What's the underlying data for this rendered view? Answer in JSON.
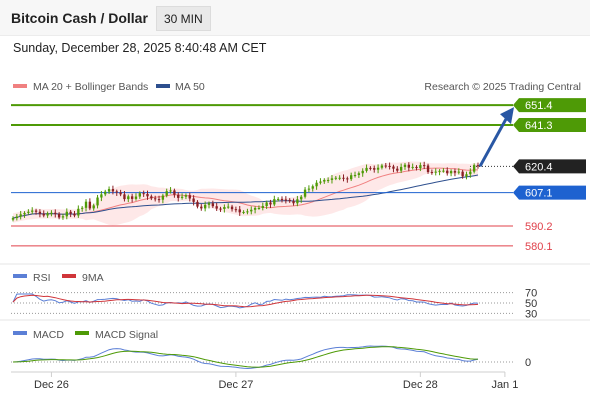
{
  "header": {
    "title": "Bitcoin Cash / Dollar",
    "timeframe": "30 MIN"
  },
  "datetime": "Sunday, December 28, 2025 8:40:48 AM CET",
  "legend": {
    "ma20": "MA 20 + Bollinger Bands",
    "ma50": "MA 50",
    "credit": "Research © 2025 Trading Central",
    "rsi": "RSI",
    "rsi_ma": "9MA",
    "macd": "MACD",
    "macd_signal": "MACD Signal"
  },
  "colors": {
    "green": "#4e9a06",
    "blue": "#1e62d0",
    "red": "#e0404a",
    "arrow": "#2957a4",
    "ma20": "#f08080",
    "ma50": "#2d4f8e",
    "band": "#fde0e0",
    "rsi": "#5b7fd6",
    "rsi_ma": "#d0353a",
    "macd": "#5b7fd6",
    "macd_signal": "#4e9a06"
  },
  "chart_data": {
    "type": "candlestick",
    "y_range": [
      575,
      656
    ],
    "current_price": 620.4,
    "levels": [
      {
        "value": 651.4,
        "label": "651.4",
        "kind": "resistance"
      },
      {
        "value": 641.3,
        "label": "641.3",
        "kind": "resistance"
      },
      {
        "value": 607.1,
        "label": "607.1",
        "kind": "pivot"
      },
      {
        "value": 590.2,
        "label": "590.2",
        "kind": "support"
      },
      {
        "value": 580.1,
        "label": "580.1",
        "kind": "support"
      }
    ],
    "x_ticks": [
      "Dec 26",
      "Dec 27",
      "Dec 28",
      "Jan 1"
    ],
    "x_tick_index": [
      10,
      58,
      106,
      128
    ],
    "closes": [
      594.2,
      595.0,
      596.1,
      596.8,
      597.4,
      598.0,
      597.4,
      596.4,
      595.5,
      596.6,
      596.9,
      596.3,
      594.5,
      595.1,
      597.4,
      596.5,
      595.5,
      598.9,
      599.4,
      602.5,
      599.1,
      600.6,
      604.6,
      606.2,
      607.6,
      608.9,
      607.7,
      607.2,
      606.2,
      603.8,
      605.2,
      603.9,
      605.1,
      606.8,
      606.4,
      605.2,
      604.2,
      603.8,
      603.5,
      605.6,
      607.8,
      608.2,
      606.0,
      604.4,
      605.0,
      605.8,
      604.1,
      602.4,
      600.0,
      599.1,
      600.9,
      601.7,
      600.2,
      599.0,
      598.8,
      599.8,
      600.0,
      598.7,
      598.6,
      597.1,
      597.3,
      597.6,
      598.4,
      599.3,
      599.3,
      600.3,
      602.1,
      601.1,
      603.8,
      603.9,
      603.6,
      603.4,
      602.8,
      601.7,
      603.7,
      605.0,
      608.6,
      609.1,
      610.3,
      612.1,
      612.7,
      613.5,
      613.5,
      614.3,
      614.6,
      614.6,
      614.3,
      613.9,
      615.9,
      616.0,
      616.9,
      618.1,
      619.6,
      619.5,
      618.7,
      619.7,
      620.8,
      620.6,
      620.3,
      619.2,
      618.2,
      620.1,
      621.2,
      619.7,
      620.1,
      619.5,
      621.0,
      620.8,
      617.5,
      617.3,
      617.7,
      618.1,
      618.2,
      616.9,
      618.0,
      617.2,
      617.7,
      615.3,
      616.4,
      617.7,
      621.0,
      620.4
    ],
    "opens": [
      593.4,
      594.2,
      595.0,
      596.1,
      596.8,
      597.4,
      598.0,
      597.4,
      596.4,
      595.5,
      596.6,
      596.9,
      596.3,
      594.5,
      595.1,
      597.4,
      596.5,
      595.5,
      598.9,
      599.4,
      602.5,
      599.1,
      600.6,
      604.6,
      606.2,
      607.6,
      608.9,
      607.7,
      607.2,
      606.2,
      603.8,
      605.2,
      603.9,
      605.1,
      606.8,
      606.4,
      605.2,
      604.2,
      603.8,
      603.5,
      605.6,
      607.8,
      608.2,
      606.0,
      604.4,
      605.0,
      605.8,
      604.1,
      602.4,
      600.0,
      599.1,
      600.9,
      601.7,
      600.2,
      599.0,
      598.8,
      599.8,
      600.0,
      598.7,
      598.6,
      597.1,
      597.3,
      597.6,
      598.4,
      599.3,
      599.3,
      600.3,
      602.1,
      601.1,
      603.8,
      603.9,
      603.6,
      603.4,
      602.8,
      601.7,
      603.7,
      605.0,
      608.6,
      609.1,
      610.3,
      612.1,
      612.7,
      613.5,
      613.5,
      614.3,
      614.6,
      614.6,
      614.3,
      613.9,
      615.9,
      616.0,
      616.9,
      618.1,
      619.6,
      619.5,
      618.7,
      619.7,
      620.8,
      620.6,
      620.3,
      619.2,
      618.2,
      620.1,
      621.2,
      619.7,
      620.1,
      619.5,
      621.0,
      620.8,
      617.5,
      617.3,
      617.7,
      618.1,
      618.2,
      616.9,
      618.0,
      617.2,
      617.7,
      615.3,
      616.4,
      617.7,
      621.0
    ],
    "rsi_axis": [
      "70",
      "50",
      "30"
    ],
    "macd_axis": [
      "0"
    ],
    "forecast_target": 651.4
  }
}
